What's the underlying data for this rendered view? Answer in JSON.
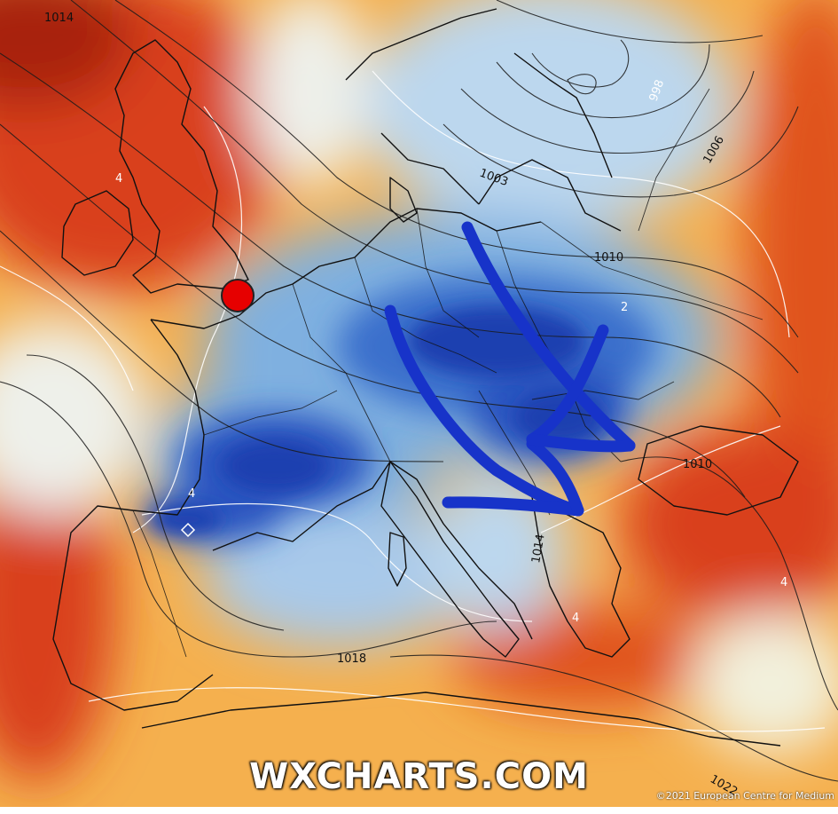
{
  "map": {
    "watermark": "WXCHARTS.COM",
    "copyright": "©2021 European Centre for Medium",
    "colors": {
      "deep_blue": "#1c3fb0",
      "mid_blue": "#4f8fd6",
      "light_blue": "#bcd7ee",
      "pale": "#f2f2e6",
      "yellow": "#f5cf72",
      "orange": "#f0902a",
      "red": "#d9401c",
      "dark_red": "#a8200e",
      "arrow": "#1733c9",
      "marker": "#e60000"
    },
    "isobar_labels": [
      {
        "id": "l1",
        "text": "1014"
      },
      {
        "id": "l2",
        "text": "1003"
      },
      {
        "id": "l3",
        "text": "998"
      },
      {
        "id": "l4",
        "text": "1006"
      },
      {
        "id": "l5",
        "text": "1010"
      },
      {
        "id": "l6",
        "text": "1010"
      },
      {
        "id": "l7",
        "text": "1014"
      },
      {
        "id": "l8",
        "text": "1018"
      },
      {
        "id": "l9",
        "text": "1022"
      }
    ],
    "temp_labels": [
      {
        "id": "t1",
        "text": "4"
      },
      {
        "id": "t2",
        "text": "2"
      },
      {
        "id": "t3",
        "text": "4"
      },
      {
        "id": "t4",
        "text": "4"
      },
      {
        "id": "t5",
        "text": "4"
      }
    ],
    "annotations": {
      "marker": "red-dot-location",
      "arrows": "blue-hand-drawn-arrows"
    }
  }
}
